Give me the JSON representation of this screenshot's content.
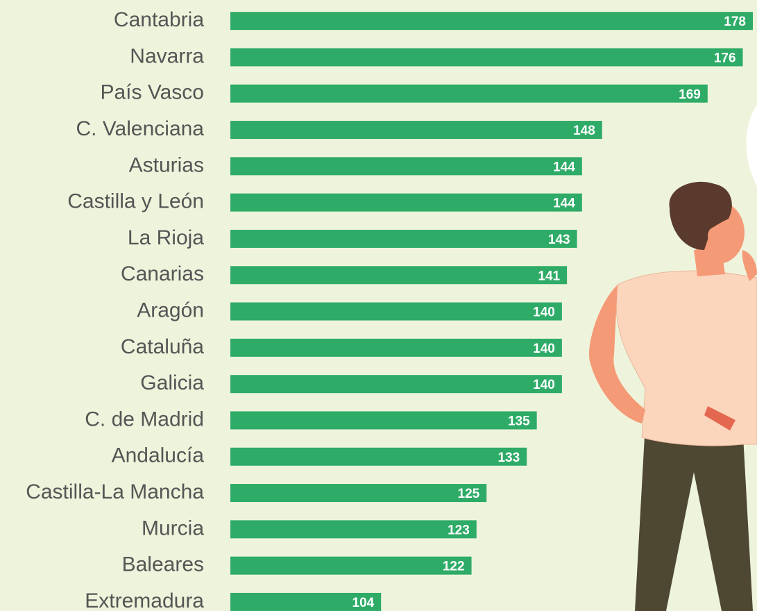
{
  "chart_data": {
    "type": "bar",
    "orientation": "horizontal",
    "categories": [
      "Cantabria",
      "Navarra",
      "País Vasco",
      "C. Valenciana",
      "Asturias",
      "Castilla y León",
      "La Rioja",
      "Canarias",
      "Aragón",
      "Cataluña",
      "Galicia",
      "C. de Madrid",
      "Andalucía",
      "Castilla-La Mancha",
      "Murcia",
      "Baleares",
      "Extremadura"
    ],
    "values": [
      178,
      176,
      169,
      148,
      144,
      144,
      143,
      141,
      140,
      140,
      140,
      135,
      133,
      125,
      123,
      122,
      104
    ],
    "color": "#2eab67",
    "xlim": [
      74,
      178
    ]
  }
}
